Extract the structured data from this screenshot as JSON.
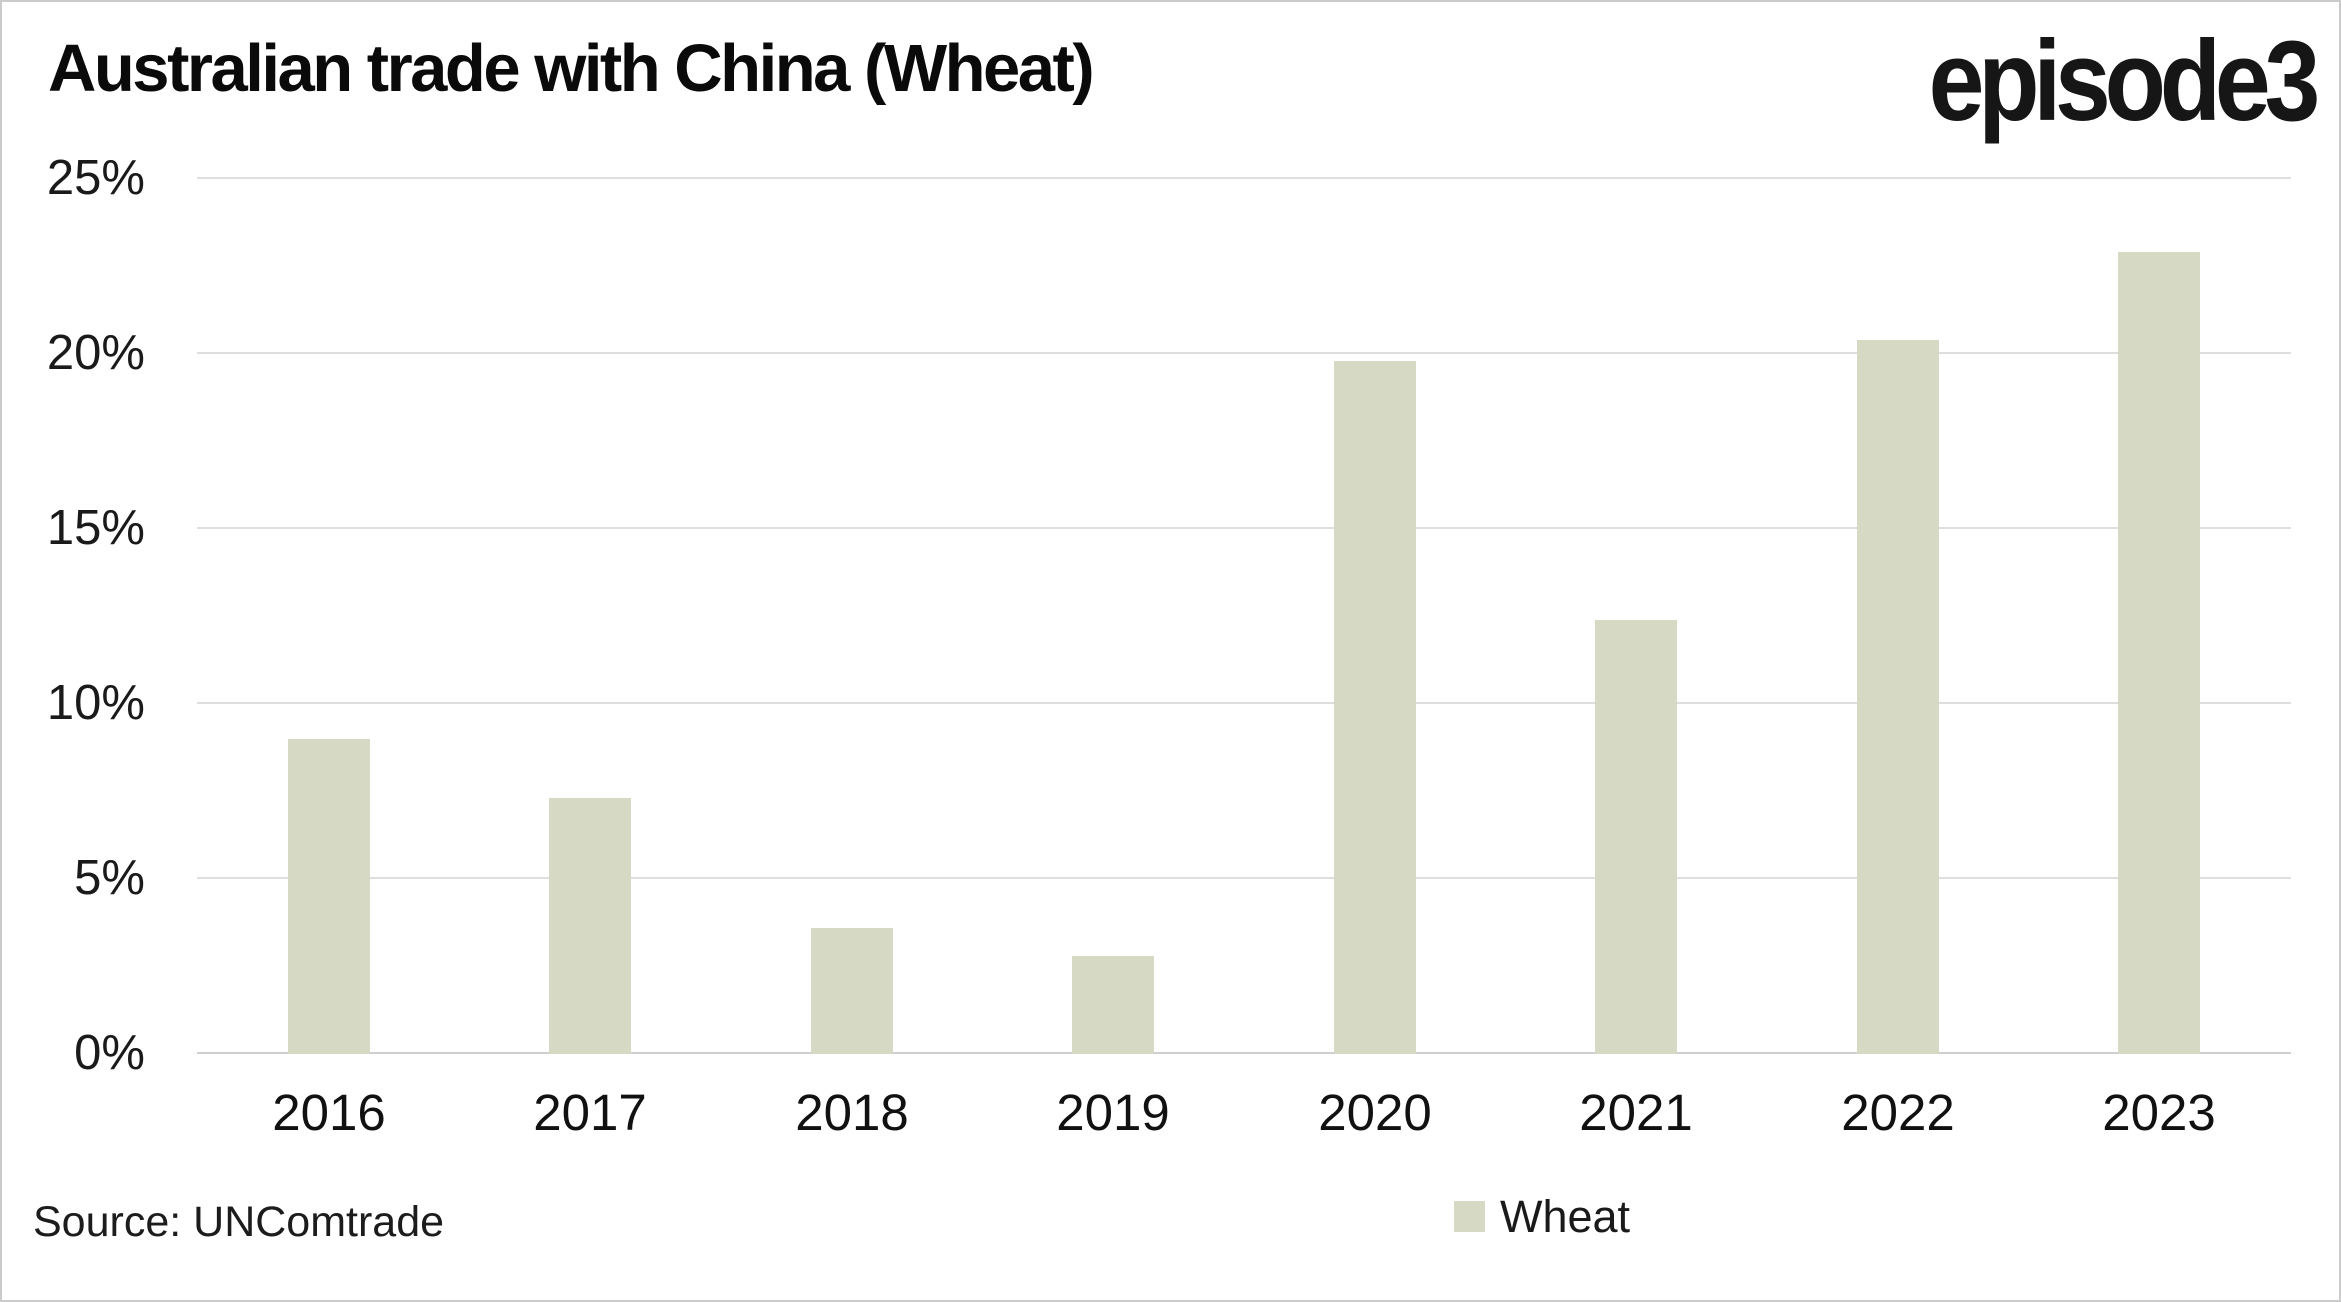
{
  "title": "Australian trade with China (Wheat)",
  "logo": "episode3",
  "source": "Source: UNComtrade",
  "legend": {
    "label": "Wheat",
    "swatch_color": "#d6d9c4"
  },
  "colors": {
    "bar": "#d6d9c4",
    "gridline": "#dedede",
    "axis_line": "#cfcfcf",
    "text": "#1a1a1a",
    "background": "#ffffff"
  },
  "chart_data": {
    "type": "bar",
    "title": "Australian trade with China (Wheat)",
    "categories": [
      "2016",
      "2017",
      "2018",
      "2019",
      "2020",
      "2021",
      "2022",
      "2023"
    ],
    "series": [
      {
        "name": "Wheat",
        "values": [
          9.0,
          7.3,
          3.6,
          2.8,
          19.8,
          12.4,
          20.4,
          22.9
        ]
      }
    ],
    "unit": "%",
    "xlabel": "",
    "ylabel": "",
    "ylim": [
      0,
      25
    ],
    "y_ticks": [
      {
        "value": 25,
        "label": "25%"
      },
      {
        "value": 20,
        "label": "20%"
      },
      {
        "value": 15,
        "label": "15%"
      },
      {
        "value": 10,
        "label": "10%"
      },
      {
        "value": 5,
        "label": "5%"
      },
      {
        "value": 0,
        "label": "0%"
      }
    ],
    "grid": true,
    "legend_position": "bottom",
    "bar_color": "#d6d9c4"
  }
}
